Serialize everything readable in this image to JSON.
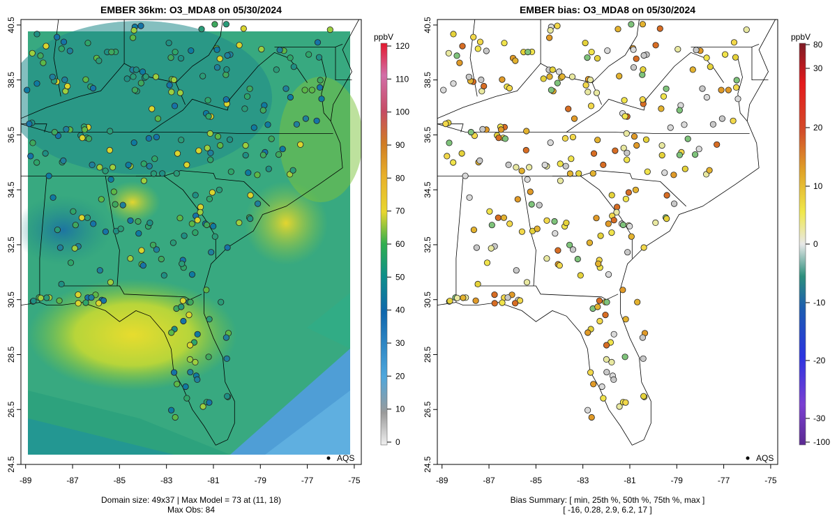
{
  "left_map": {
    "title": "EMBER 36km: O3_MDA8 on 05/30/2024",
    "footer_line1": "Domain size: 49x37 | Max Model = 73 at (11, 18)",
    "footer_line2": "Max Obs: 84",
    "legend_label": "AQS",
    "colorbar_unit": "ppbV",
    "colorbar_ticks": [
      "0",
      "10",
      "20",
      "30",
      "40",
      "50",
      "60",
      "70",
      "80",
      "90",
      "100",
      "110",
      "120"
    ],
    "colorbar_colors": [
      "#e0e0e0",
      "#9a9a9a",
      "#4ea7dc",
      "#0f67ad",
      "#0e8f8a",
      "#2fae4e",
      "#7cc43b",
      "#e8d62e",
      "#e8b02a",
      "#d07c24",
      "#c64b63",
      "#d26fa8",
      "#e4182e"
    ]
  },
  "right_map": {
    "title": "EMBER bias: O3_MDA8 on 05/30/2024",
    "footer_line1": "Bias Summary: [ min, 25th %, 50th %, 75th %, max ]",
    "footer_line2": "[ -16,   0.28,   2.9,   6.2,   17 ]",
    "legend_label": "AQS",
    "colorbar_unit": "ppbV",
    "colorbar_ticks": [
      "80",
      "30",
      "20",
      "10",
      "0",
      "-10",
      "-20",
      "-30",
      "-100"
    ],
    "colorbar_colors": [
      "#7d1b25",
      "#e41a1c",
      "#d24d2a",
      "#e0a428",
      "#f0e84a",
      "#e8e8e8",
      "#7fc37b",
      "#2c8f7c",
      "#1c5db0",
      "#2b34e0",
      "#7a3fd2",
      "#5a2a90"
    ]
  },
  "axes": {
    "x_ticks": [
      "-89",
      "-87",
      "-85",
      "-83",
      "-81",
      "-79",
      "-77",
      "-75"
    ],
    "y_ticks": [
      "24.5",
      "26.5",
      "28.5",
      "30.5",
      "32.5",
      "34.5",
      "36.5",
      "38.5",
      "40.5"
    ],
    "xlim": [
      -89.2,
      -74.7
    ],
    "ylim": [
      24.5,
      40.7
    ]
  }
}
